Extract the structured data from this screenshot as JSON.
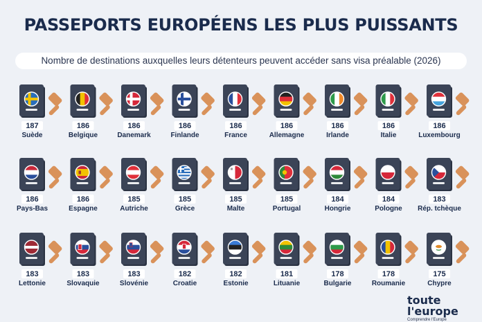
{
  "header": {
    "title": "PASSEPORTS EUROPÉENS LES PLUS PUISSANTS",
    "subtitle": "Nombre de destinations auxquelles leurs détenteurs peuvent accéder sans visa préalable (2026)"
  },
  "colors": {
    "background": "#eef1f6",
    "title": "#1a2b4c",
    "passport": "#3b4457",
    "stamp": "#d9925a",
    "label": "#1a2b4c"
  },
  "chart_data": {
    "type": "table",
    "categories": [
      "Suède",
      "Belgique",
      "Danemark",
      "Finlande",
      "France",
      "Allemagne",
      "Irlande",
      "Italie",
      "Luxembourg",
      "Pays-Bas",
      "Espagne",
      "Autriche",
      "Grèce",
      "Malte",
      "Portugal",
      "Hongrie",
      "Pologne",
      "Rép. tchèque",
      "Lettonie",
      "Slovaquie",
      "Slovénie",
      "Croatie",
      "Estonie",
      "Lituanie",
      "Bulgarie",
      "Roumanie",
      "Chypre"
    ],
    "values": [
      187,
      186,
      186,
      186,
      186,
      186,
      186,
      186,
      186,
      186,
      186,
      185,
      185,
      185,
      185,
      184,
      184,
      183,
      183,
      183,
      183,
      182,
      182,
      181,
      178,
      178,
      175
    ],
    "flags": [
      "sweden-flag",
      "belgium-flag",
      "denmark-flag",
      "finland-flag",
      "france-flag",
      "germany-flag",
      "ireland-flag",
      "italy-flag",
      "luxembourg-flag",
      "netherlands-flag",
      "spain-flag",
      "austria-flag",
      "greece-flag",
      "malta-flag",
      "portugal-flag",
      "hungary-flag",
      "poland-flag",
      "czechia-flag",
      "latvia-flag",
      "slovakia-flag",
      "slovenia-flag",
      "croatia-flag",
      "estonia-flag",
      "lithuania-flag",
      "bulgaria-flag",
      "romania-flag",
      "cyprus-flag"
    ]
  },
  "logo": {
    "name": "toute l'europe",
    "tagline": "Comprendre l'Europe"
  }
}
